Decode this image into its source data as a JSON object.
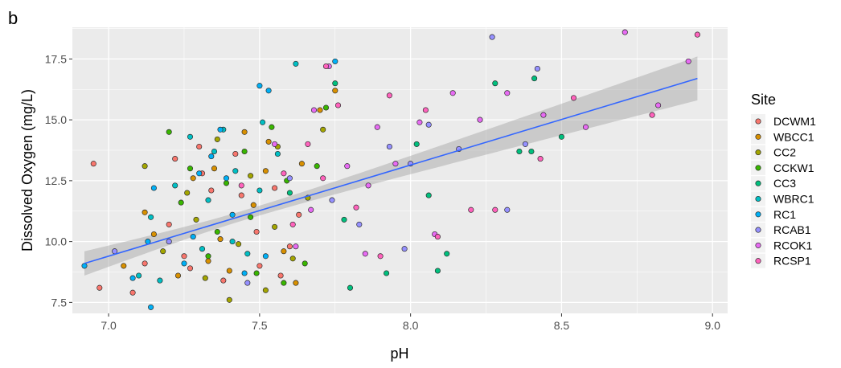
{
  "panel_label": "b",
  "chart_data": {
    "type": "scatter",
    "title": "",
    "xlabel": "pH",
    "ylabel": "Dissolved Oxygen (mg/L)",
    "xlim": [
      6.88,
      9.05
    ],
    "ylim": [
      7.05,
      18.8
    ],
    "xticks": [
      7.0,
      7.5,
      8.0,
      8.5,
      9.0
    ],
    "xtick_labels": [
      "7.0",
      "7.5",
      "8.0",
      "8.5",
      "9.0"
    ],
    "yticks": [
      7.5,
      10.0,
      12.5,
      15.0,
      17.5
    ],
    "ytick_labels": [
      "7.5",
      "10.0",
      "12.5",
      "15.0",
      "17.5"
    ],
    "grid": true,
    "legend": {
      "title": "Site",
      "placement": "right",
      "entries": [
        "DCWM1",
        "WBCC1",
        "CC2",
        "CCKW1",
        "CC3",
        "WBRC1",
        "RC1",
        "RCAB1",
        "RCOK1",
        "RCSP1"
      ]
    },
    "colors": {
      "DCWM1": "#F8766D",
      "WBCC1": "#D89000",
      "CC2": "#A3A500",
      "CCKW1": "#39B600",
      "CC3": "#00BF7D",
      "WBRC1": "#00BFC4",
      "RC1": "#00B0F6",
      "RCAB1": "#9590FF",
      "RCOK1": "#E76BF3",
      "RCSP1": "#FF62BC",
      "trend_line": "#3366FF",
      "ribbon": "#999999",
      "panel_bg": "#EBEBEB"
    },
    "trend": {
      "type": "linear",
      "x": [
        6.92,
        8.95
      ],
      "y": [
        9.1,
        16.7
      ],
      "ci_lower": [
        8.6,
        15.8
      ],
      "ci_upper": [
        9.6,
        17.6
      ],
      "ci_mid_x": 7.45,
      "ci_mid_halfwidth": 0.2
    },
    "series": [
      {
        "name": "DCWM1",
        "x": [
          6.95,
          6.97,
          7.12,
          7.2,
          7.22,
          7.27,
          7.3,
          7.34,
          7.38,
          7.44,
          7.5,
          7.55,
          7.6,
          7.08,
          7.25,
          7.31,
          7.42,
          7.49,
          7.57,
          7.63
        ],
        "y": [
          13.2,
          8.1,
          9.1,
          10.7,
          13.4,
          8.9,
          13.9,
          12.1,
          8.4,
          11.9,
          9.0,
          12.2,
          9.8,
          7.9,
          9.4,
          12.8,
          13.6,
          10.4,
          8.6,
          11.1
        ]
      },
      {
        "name": "WBCC1",
        "x": [
          7.05,
          7.15,
          7.23,
          7.28,
          7.35,
          7.4,
          7.48,
          7.53,
          7.58,
          7.64,
          7.7,
          7.75,
          7.33,
          7.45,
          7.62,
          7.12,
          7.37,
          7.52
        ],
        "y": [
          9.0,
          10.3,
          8.6,
          12.6,
          13.0,
          8.8,
          11.5,
          14.1,
          9.6,
          13.2,
          15.4,
          16.2,
          9.2,
          14.5,
          8.3,
          11.2,
          10.1,
          12.9
        ]
      },
      {
        "name": "CC2",
        "x": [
          7.12,
          7.18,
          7.26,
          7.32,
          7.36,
          7.43,
          7.47,
          7.52,
          7.56,
          7.61,
          7.66,
          7.71,
          7.4,
          7.29,
          7.55
        ],
        "y": [
          13.1,
          9.6,
          12.0,
          8.5,
          14.2,
          9.9,
          12.7,
          8.0,
          13.9,
          9.3,
          11.8,
          14.6,
          7.6,
          10.9,
          10.6
        ]
      },
      {
        "name": "CCKW1",
        "x": [
          7.2,
          7.27,
          7.33,
          7.39,
          7.45,
          7.49,
          7.54,
          7.59,
          7.65,
          7.72,
          7.47,
          7.36,
          7.24,
          7.58,
          7.69
        ],
        "y": [
          14.5,
          13.0,
          9.4,
          12.4,
          13.7,
          8.7,
          14.7,
          12.5,
          9.1,
          15.5,
          11.0,
          10.4,
          11.6,
          8.3,
          13.1
        ]
      },
      {
        "name": "CC3",
        "x": [
          7.75,
          7.8,
          7.92,
          8.02,
          8.06,
          8.12,
          8.28,
          8.36,
          8.4,
          8.41,
          8.5,
          7.78,
          7.6,
          8.09
        ],
        "y": [
          16.5,
          8.1,
          8.7,
          14.0,
          11.9,
          9.5,
          16.5,
          13.7,
          13.7,
          16.7,
          14.3,
          10.9,
          12.0,
          8.8
        ]
      },
      {
        "name": "WBRC1",
        "x": [
          7.1,
          7.14,
          7.22,
          7.27,
          7.31,
          7.35,
          7.38,
          7.42,
          7.46,
          7.51,
          7.56,
          7.62,
          7.17,
          7.33,
          7.41,
          7.5
        ],
        "y": [
          8.6,
          11.0,
          12.3,
          14.3,
          9.7,
          13.7,
          14.6,
          12.9,
          9.5,
          14.9,
          13.6,
          17.3,
          8.4,
          11.7,
          10.0,
          12.1
        ]
      },
      {
        "name": "RC1",
        "x": [
          6.92,
          7.08,
          7.14,
          7.15,
          7.25,
          7.3,
          7.34,
          7.37,
          7.41,
          7.45,
          7.5,
          7.53,
          7.75,
          7.28,
          7.39,
          7.52,
          7.13
        ],
        "y": [
          9.0,
          8.5,
          7.3,
          12.2,
          9.1,
          12.8,
          13.5,
          14.6,
          11.1,
          8.7,
          16.4,
          16.2,
          17.4,
          10.2,
          12.6,
          9.4,
          10.0
        ]
      },
      {
        "name": "RCAB1",
        "x": [
          7.02,
          7.2,
          7.46,
          7.6,
          7.74,
          7.83,
          7.93,
          8.0,
          8.06,
          8.16,
          8.27,
          8.38,
          8.42,
          8.32,
          7.98
        ],
        "y": [
          9.6,
          10.0,
          8.3,
          12.6,
          11.7,
          10.7,
          13.9,
          13.2,
          14.8,
          13.8,
          18.4,
          14.0,
          17.1,
          11.3,
          9.7
        ]
      },
      {
        "name": "RCOK1",
        "x": [
          7.55,
          7.62,
          7.68,
          7.73,
          7.79,
          7.85,
          7.89,
          7.95,
          8.03,
          8.08,
          8.14,
          8.23,
          8.32,
          8.44,
          8.58,
          8.71,
          8.82,
          8.92,
          7.67,
          7.86
        ],
        "y": [
          14.0,
          9.8,
          15.4,
          17.2,
          13.1,
          9.5,
          14.7,
          13.2,
          14.9,
          10.3,
          16.1,
          15.0,
          16.1,
          15.2,
          14.7,
          18.6,
          15.6,
          17.4,
          11.3,
          12.3
        ]
      },
      {
        "name": "RCSP1",
        "x": [
          7.44,
          7.58,
          7.66,
          7.72,
          7.76,
          7.82,
          7.9,
          7.93,
          8.05,
          8.09,
          8.2,
          8.28,
          8.43,
          8.54,
          8.8,
          8.95,
          7.61,
          7.71
        ],
        "y": [
          12.3,
          12.8,
          14.0,
          17.2,
          15.6,
          11.4,
          9.4,
          16.0,
          15.4,
          10.2,
          11.3,
          11.3,
          13.4,
          15.9,
          15.2,
          18.5,
          10.7,
          12.6
        ]
      }
    ]
  }
}
